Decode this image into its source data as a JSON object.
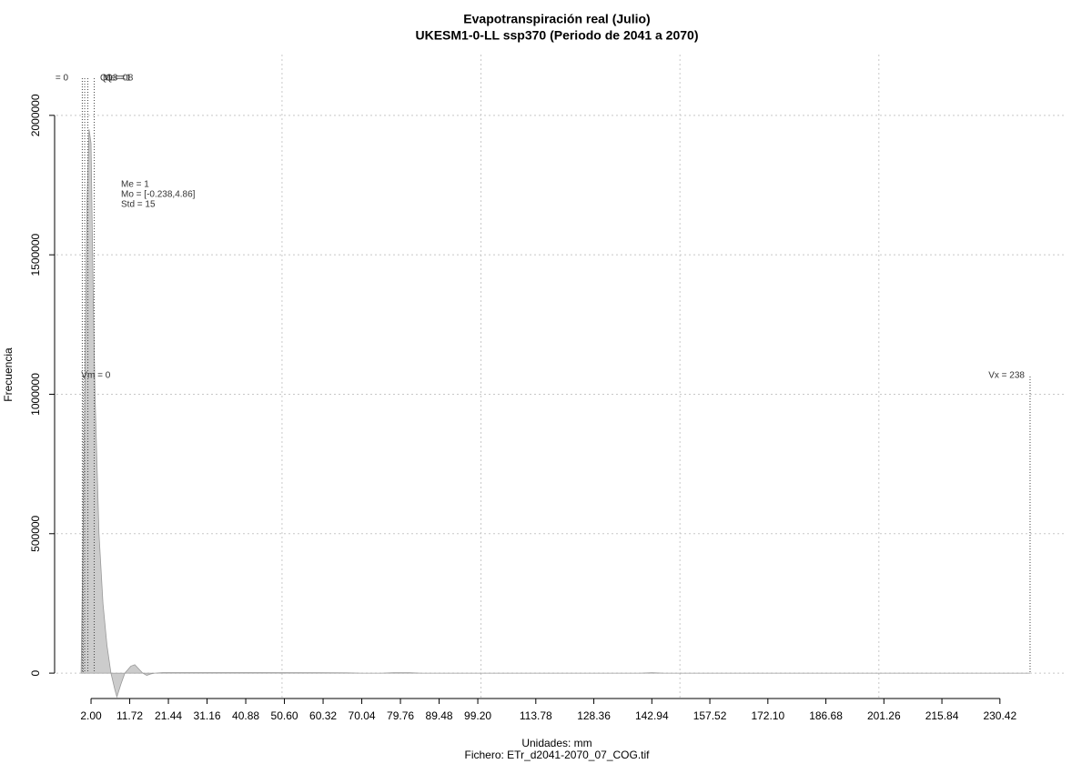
{
  "chart_data": {
    "type": "area",
    "title": "Evapotranspiración real (Julio)",
    "subtitle": "UKESM1-0-LL ssp370 (Periodo de 2041 a 2070)",
    "xlabel": "Unidades: mm",
    "caption": "Fichero: ETr_d2041-2070_07_COG.tif",
    "ylabel": "Frecuencia",
    "x": [
      -0.5,
      0,
      0.5,
      1,
      1.5,
      2,
      2.5,
      3,
      4,
      5,
      6,
      7,
      8,
      8.5,
      9.5,
      10.5,
      12,
      13,
      14,
      15,
      16,
      17,
      18,
      20,
      40,
      60,
      66,
      70,
      75,
      78,
      82,
      85,
      140,
      143,
      146,
      238
    ],
    "values": [
      0,
      500000,
      1100000,
      1700000,
      1950000,
      1900000,
      1400000,
      1000000,
      500000,
      250000,
      100000,
      0,
      -60000,
      -85000,
      -40000,
      0,
      25000,
      30000,
      15000,
      0,
      -8000,
      -3000,
      0,
      2000,
      2000,
      1500,
      1000,
      0,
      0,
      1500,
      1500,
      0,
      0,
      1500,
      0,
      0
    ],
    "color": "#cccccc",
    "xlim": [
      -6.7,
      246.7
    ],
    "ylim": [
      -91000,
      2218000
    ],
    "xticks": [
      {
        "value": 2,
        "label": "2.00"
      },
      {
        "value": 11.72,
        "label": "11.72"
      },
      {
        "value": 21.44,
        "label": "21.44"
      },
      {
        "value": 31.16,
        "label": "31.16"
      },
      {
        "value": 40.88,
        "label": "40.88"
      },
      {
        "value": 50.6,
        "label": "50.60"
      },
      {
        "value": 60.32,
        "label": "60.32"
      },
      {
        "value": 70.04,
        "label": "70.04"
      },
      {
        "value": 79.76,
        "label": "79.76"
      },
      {
        "value": 89.48,
        "label": "89.48"
      },
      {
        "value": 99.2,
        "label": "99.20"
      },
      {
        "value": 113.78,
        "label": "113.78"
      },
      {
        "value": 128.36,
        "label": "128.36"
      },
      {
        "value": 142.94,
        "label": "142.94"
      },
      {
        "value": 157.52,
        "label": "157.52"
      },
      {
        "value": 172.1,
        "label": "172.10"
      },
      {
        "value": 186.68,
        "label": "186.68"
      },
      {
        "value": 201.26,
        "label": "201.26"
      },
      {
        "value": 215.84,
        "label": "215.84"
      },
      {
        "value": 230.42,
        "label": "230.42"
      }
    ],
    "yticks": [
      0,
      500000,
      1000000,
      1500000,
      2000000
    ],
    "xgrid": [
      50,
      100,
      150,
      200
    ],
    "grid": true,
    "markers": [
      {
        "label": "= 0",
        "x": -0.2
      },
      {
        "label": "Q1 = 0",
        "x": 0.4
      },
      {
        "label": "Me = 1",
        "x": 1.2
      },
      {
        "label": "Q3 = 8",
        "x": 2.8
      }
    ],
    "extremes": [
      {
        "label": "Vm = 0",
        "x": 0
      },
      {
        "label": "Vx = 238",
        "x": 238
      }
    ],
    "stats": [
      "Me = 1",
      "Mo = [-0.238,4.86]",
      "Std = 15"
    ]
  }
}
